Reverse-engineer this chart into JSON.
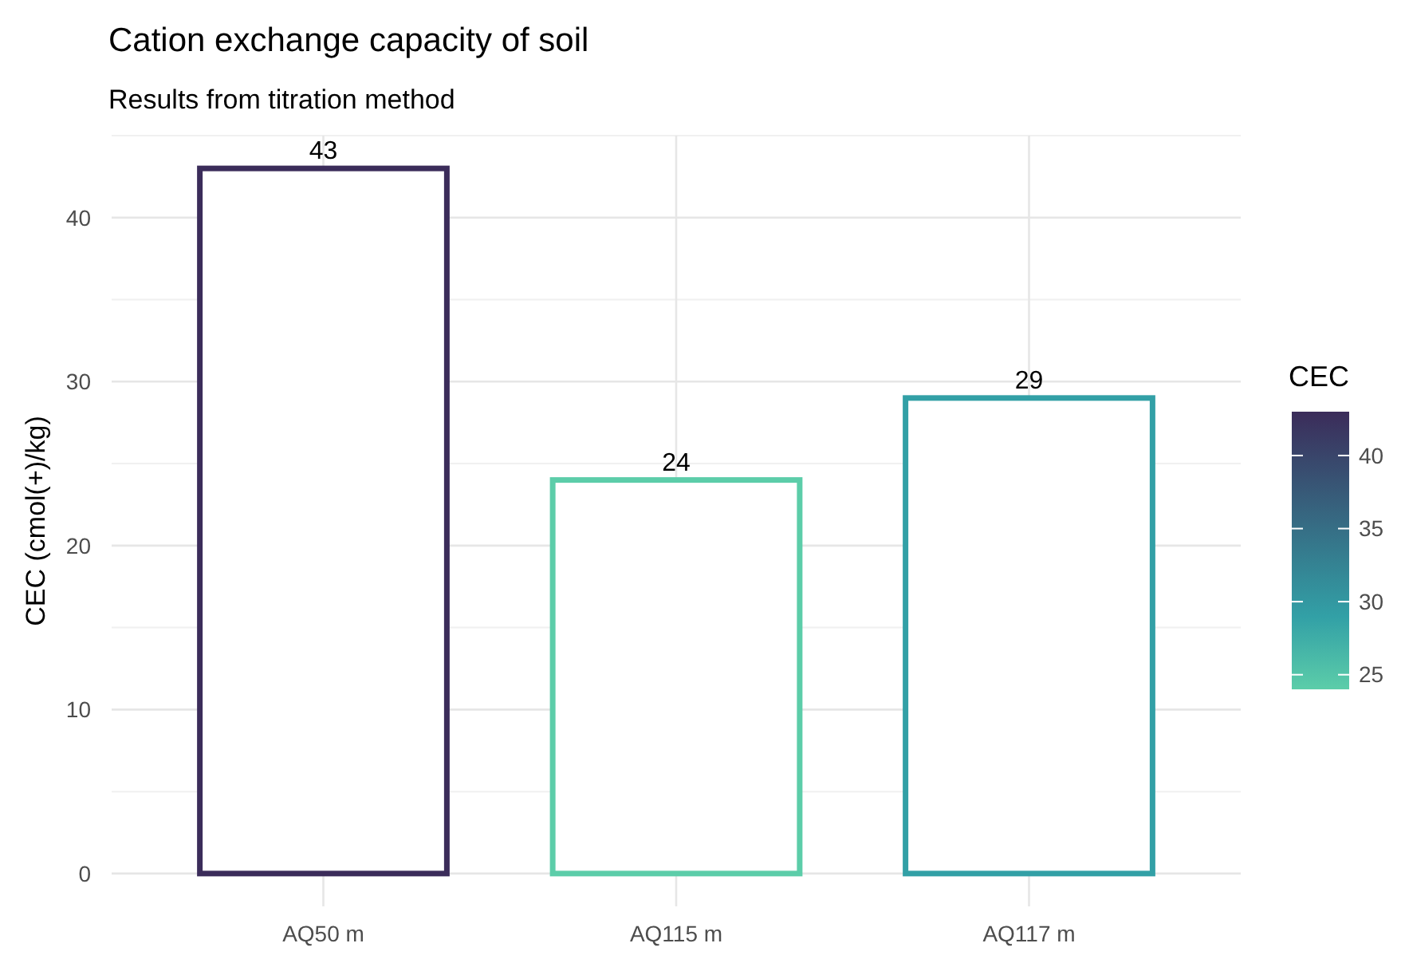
{
  "chart_data": {
    "type": "bar",
    "title": "Cation exchange capacity of soil",
    "subtitle": "Results from titration method",
    "ylabel": "CEC (cmol(+)/kg)",
    "categories": [
      "AQ50 m",
      "AQ115 m",
      "AQ117 m"
    ],
    "values": [
      43,
      24,
      29
    ],
    "colors": [
      "#3b2c5a",
      "#5ccda9",
      "#32a0a6"
    ],
    "data_labels": true,
    "ylim": [
      -2,
      45
    ],
    "yticks": [
      0,
      10,
      20,
      30,
      40
    ],
    "grid": true,
    "legend_title": "CEC",
    "clim": [
      24,
      43
    ],
    "cticks": [
      25,
      30,
      35,
      40
    ]
  }
}
